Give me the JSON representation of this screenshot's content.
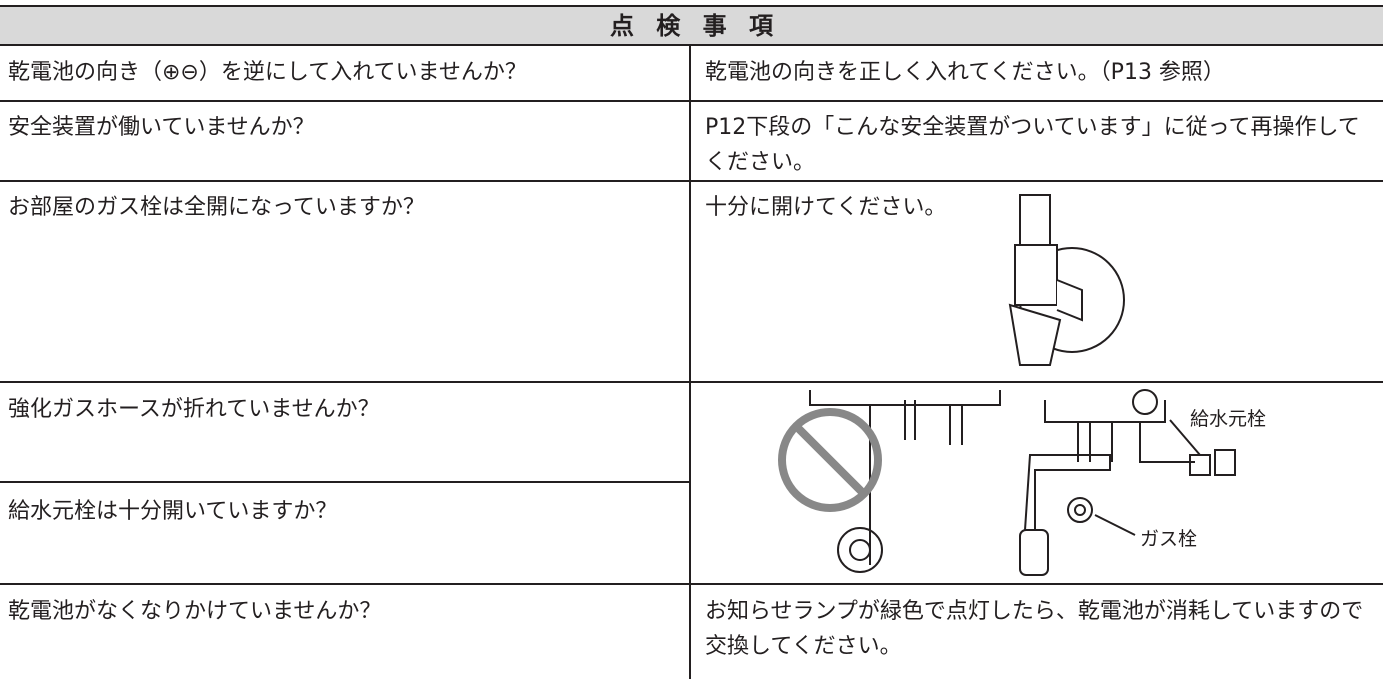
{
  "header": {
    "title": "点 検 事 項"
  },
  "table": {
    "rows": [
      {
        "check": "乾電池の向き（⊕⊖）を逆にして入れていませんか？",
        "remedy": "乾電池の向きを正しく入れてください。（P13 参照）"
      },
      {
        "check": "安全装置が働いていませんか？",
        "remedy": "P12下段の「こんな安全装置がついています」に従って再操作してください。"
      },
      {
        "check": "お部屋のガス栓は全開になっていますか？",
        "remedy": "十分に開けてください。"
      },
      {
        "checks": [
          "強化ガスホースが折れていませんか？",
          "給水元栓は十分開いていますか？"
        ],
        "labels": [
          "給水元栓",
          "ガス栓"
        ]
      },
      {
        "check": "乾電池がなくなりかけていませんか？",
        "remedy": "お知らせランプが緑色で点灯したら、乾電池が消耗していますので交換してください。"
      }
    ]
  }
}
